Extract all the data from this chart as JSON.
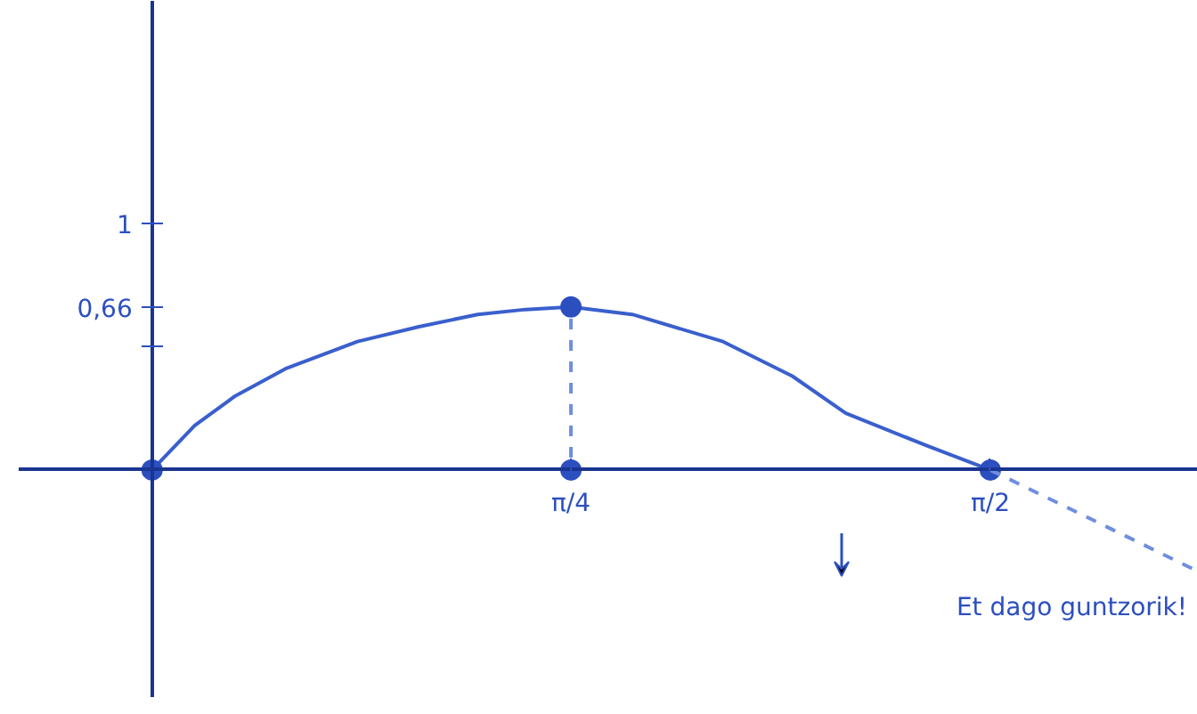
{
  "chart_data": {
    "type": "line",
    "xlim": [
      -0.25,
      1.96
    ],
    "ylim": [
      -0.92,
      1.9
    ],
    "xticks": [
      {
        "value": 0.785,
        "label": "π/4"
      },
      {
        "value": 1.571,
        "label": "π/2"
      }
    ],
    "yticks": [
      {
        "value": 0.5,
        "label": null
      },
      {
        "value": 0.66,
        "label": "0,66"
      },
      {
        "value": 1,
        "label": "1"
      }
    ],
    "grid": false,
    "marker": "none",
    "line_style": "solid",
    "series": [
      {
        "color": "#3a5fcd",
        "x": [
          0,
          0.08,
          0.156,
          0.25,
          0.385,
          0.5,
          0.61,
          0.7,
          0.785,
          0.9,
          1.07,
          1.2,
          1.3,
          1.45,
          1.571
        ],
        "values": [
          0,
          0.18,
          0.3,
          0.41,
          0.52,
          0.58,
          0.63,
          0.65,
          0.66,
          0.63,
          0.52,
          0.38,
          0.23,
          0.1,
          0
        ]
      },
      {
        "type": "scatter",
        "marker": "circle",
        "color": "#2c4fc0",
        "x": [
          0,
          0.785,
          1.571,
          0.785
        ],
        "values": [
          0,
          0,
          0,
          0.66
        ]
      },
      {
        "color": "#6f8ee0",
        "line_style": "dashed",
        "x": [
          0.785,
          0.785
        ],
        "values": [
          0.05,
          0.62
        ]
      },
      {
        "color": "#6f8ee0",
        "line_style": "dashed",
        "x": [
          1.571,
          1.95
        ],
        "values": [
          0,
          -0.4
        ]
      }
    ],
    "annotations": [
      "Et dago guntzorik!"
    ]
  }
}
